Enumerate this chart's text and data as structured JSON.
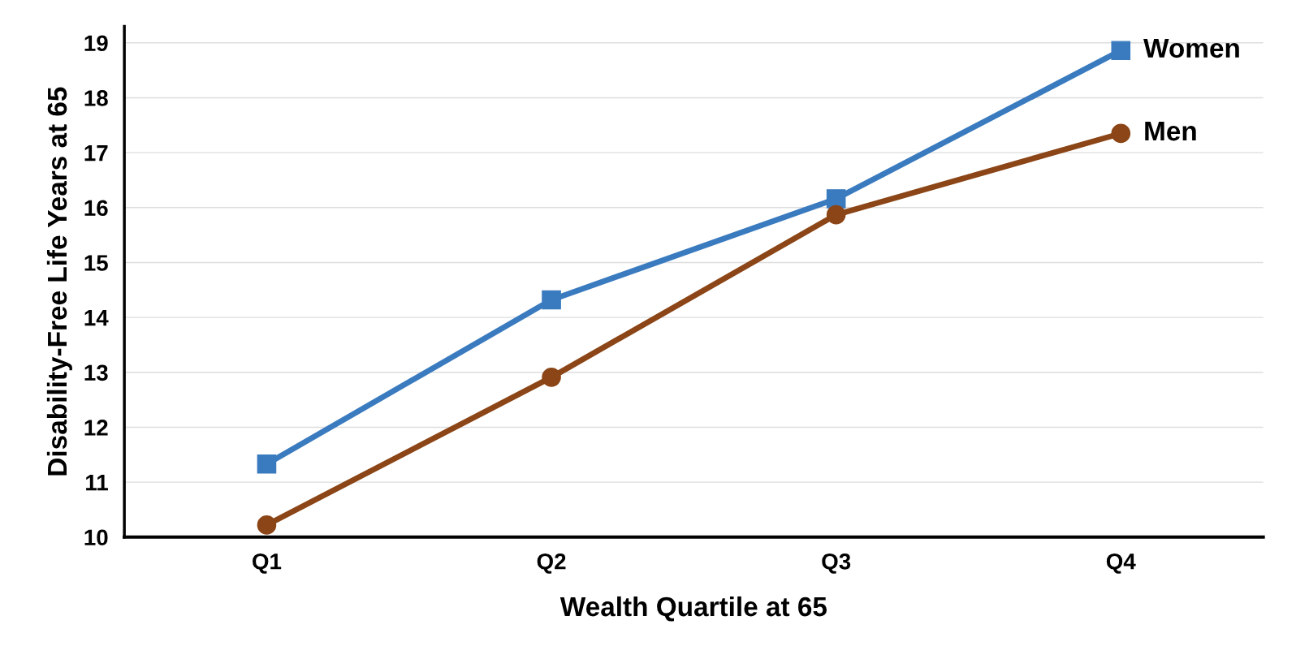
{
  "chart_data": {
    "type": "line",
    "xlabel": "Wealth Quartile at 65",
    "ylabel": "Disability-Free Life Years at 65",
    "categories": [
      "Q1",
      "Q2",
      "Q3",
      "Q4"
    ],
    "series": [
      {
        "name": "Women",
        "color": "#3a7bbf",
        "marker": "square",
        "values": [
          11.33,
          14.32,
          16.16,
          18.86
        ]
      },
      {
        "name": "Men",
        "color": "#8b4516",
        "marker": "circle",
        "values": [
          10.22,
          12.91,
          15.87,
          17.35
        ]
      }
    ],
    "ylim": [
      10,
      19.3
    ],
    "yticks": [
      10,
      11,
      12,
      13,
      14,
      15,
      16,
      17,
      18,
      19
    ],
    "grid": "y",
    "legend": false,
    "line_style": "solid"
  }
}
